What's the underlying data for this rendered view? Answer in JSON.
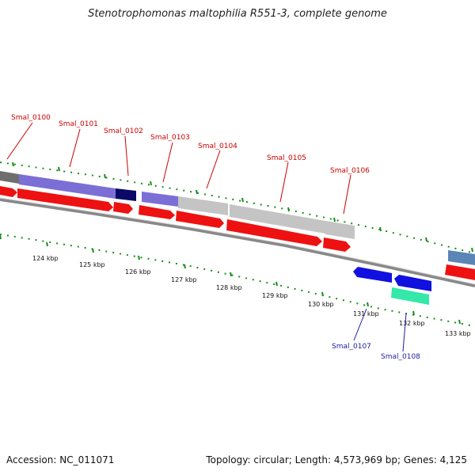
{
  "title": "Stenotrophomonas maltophilia R551-3, complete genome",
  "footer": {
    "accession": "Accession: NC_011071",
    "summary": "Topology: circular; Length: 4,573,969 bp; Genes: 4,125"
  },
  "colors": {
    "cds_red": "#ee1111",
    "label_red": "#cc0000",
    "label_blue": "#1a1aa0",
    "tick_green": "#1a8f1a",
    "backbone": "#888888"
  },
  "kbp_labels": [
    "124 kbp",
    "125 kbp",
    "126 kbp",
    "127 kbp",
    "128 kbp",
    "129 kbp",
    "130 kbp",
    "131 kbp",
    "132 kbp",
    "133 kbp"
  ],
  "upper_labels": [
    "Smal_0100",
    "Smal_0101",
    "Smal_0102",
    "Smal_0103",
    "Smal_0104",
    "Smal_0105",
    "Smal_0106"
  ],
  "lower_labels": [
    "Smal_0107",
    "Smal_0108"
  ]
}
